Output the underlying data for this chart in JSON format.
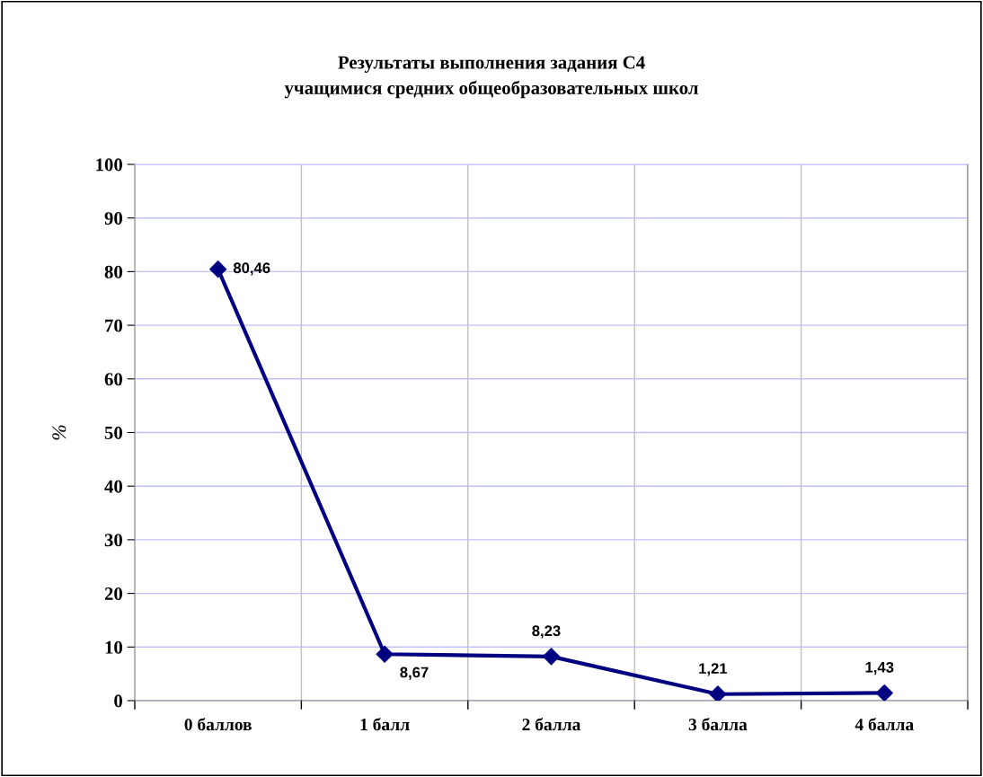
{
  "chart_data": {
    "type": "line",
    "title": "Результаты выполнения задания С4\nучащимися средних общеобразовательных школ",
    "ylabel": "%",
    "categories": [
      "0 баллов",
      "1 балл",
      "2 балла",
      "3 балла",
      "4 балла"
    ],
    "series": [
      {
        "color": "#000080",
        "values": [
          80.46,
          8.67,
          8.23,
          1.21,
          1.43
        ],
        "value_labels": [
          "80,46",
          "8,67",
          "8,23",
          "1,21",
          "1,43"
        ]
      }
    ],
    "ylim": [
      0,
      100
    ],
    "yticks": [
      0,
      10,
      20,
      30,
      40,
      50,
      60,
      70,
      80,
      90,
      100
    ],
    "grid": true,
    "marker": "diamond",
    "line_style": "solid"
  }
}
